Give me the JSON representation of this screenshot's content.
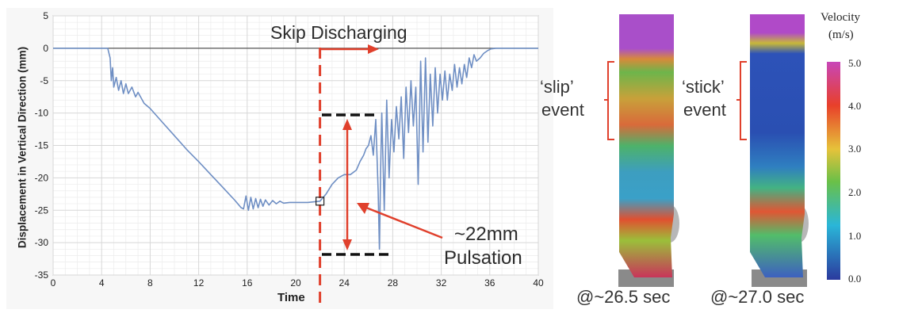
{
  "chart_data": {
    "type": "line",
    "xlabel": "Time",
    "ylabel": "Displacement in Vertical Direction (mm)",
    "xlim": [
      0,
      40
    ],
    "ylim": [
      -35,
      5
    ],
    "xticks": [
      0,
      4,
      8,
      12,
      16,
      20,
      24,
      28,
      32,
      36,
      40
    ],
    "yticks": [
      5,
      0,
      -5,
      -10,
      -15,
      -20,
      -25,
      -30,
      -35
    ],
    "grid": true,
    "line_color": "#6f8fc4",
    "series": [
      {
        "x": [
          0,
          4.5,
          4.7,
          4.8,
          4.9,
          5.0,
          5.2,
          5.4,
          5.6,
          5.8,
          6.0,
          6.2,
          6.5,
          6.8,
          7.0,
          7.5,
          8,
          9,
          10,
          11,
          12,
          13,
          14,
          15,
          15.5,
          15.7,
          15.9,
          16.1,
          16.3,
          16.5,
          16.7,
          16.9,
          17.1,
          17.3,
          17.5,
          17.8,
          18.1,
          18.4,
          18.7,
          19.0,
          19.5,
          20,
          21,
          22,
          22.5,
          23,
          23.5,
          24,
          24.5,
          25,
          25.3,
          25.6,
          25.8,
          26.0,
          26.2,
          26.4,
          26.6,
          26.8,
          26.9,
          27.0,
          27.1,
          27.3,
          27.5,
          27.7,
          27.9,
          28.1,
          28.3,
          28.5,
          28.7,
          28.9,
          29.1,
          29.3,
          29.5,
          29.7,
          29.9,
          30.1,
          30.3,
          30.5,
          30.7,
          30.9,
          31.1,
          31.3,
          31.5,
          31.7,
          31.9,
          32.1,
          32.3,
          32.5,
          32.7,
          32.9,
          33.1,
          33.3,
          33.5,
          33.7,
          33.9,
          34.1,
          34.3,
          34.5,
          34.7,
          34.9,
          35.2,
          35.5,
          35.8,
          36.1,
          36.5,
          37,
          40
        ],
        "y": [
          0,
          0,
          -1.5,
          -5,
          -3,
          -6,
          -4.5,
          -6.5,
          -5,
          -7,
          -5.5,
          -7,
          -6,
          -7.5,
          -6.8,
          -8.5,
          -9.3,
          -11.4,
          -13.5,
          -15.6,
          -17.5,
          -19.5,
          -21.5,
          -23.5,
          -24.6,
          -24.8,
          -22.8,
          -25,
          -23,
          -24.8,
          -23.2,
          -24.6,
          -23.3,
          -24.4,
          -23.4,
          -24.2,
          -23.5,
          -24,
          -23.6,
          -23.9,
          -23.8,
          -23.8,
          -23.8,
          -23.6,
          -22.5,
          -21,
          -20,
          -19.5,
          -19.5,
          -18.8,
          -17.5,
          -16.5,
          -15.5,
          -15,
          -13.5,
          -16.5,
          -11,
          -22,
          -31,
          -19,
          -10,
          -25,
          -8,
          -20,
          -11,
          -16,
          -9,
          -14,
          -7.5,
          -17,
          -6,
          -13,
          -5,
          -12,
          -6,
          -21,
          -2,
          -16,
          -1.5,
          -14.5,
          -4,
          -12,
          -3,
          -10,
          -4,
          -8,
          -3.5,
          -8,
          -4,
          -6.5,
          -2.5,
          -6,
          -3,
          -5.5,
          -2.5,
          -4.5,
          -1.5,
          -3,
          -1,
          -2,
          -1.5,
          -0.8,
          -0.4,
          -0.1,
          0,
          0,
          0
        ]
      }
    ]
  },
  "annotations": {
    "skip_discharging": "Skip Discharging",
    "pulsation_value": "~22mm",
    "pulsation_word": "Pulsation",
    "slip_label_1": "‘slip’",
    "slip_label_2": "event",
    "stick_label_1": "‘stick’",
    "stick_label_2": "event",
    "time_left": "@~26.5 sec",
    "time_right": "@~27.0 sec"
  },
  "colorbar": {
    "title_1": "Velocity",
    "title_2": "(m/s)",
    "ticks": [
      "5.0",
      "4.0",
      "3.0",
      "2.0",
      "1.0",
      "0.0"
    ]
  },
  "colors": {
    "annotation_red": "#e0402c",
    "dashed_black": "#111111",
    "gridline": "#d7d7d7"
  }
}
